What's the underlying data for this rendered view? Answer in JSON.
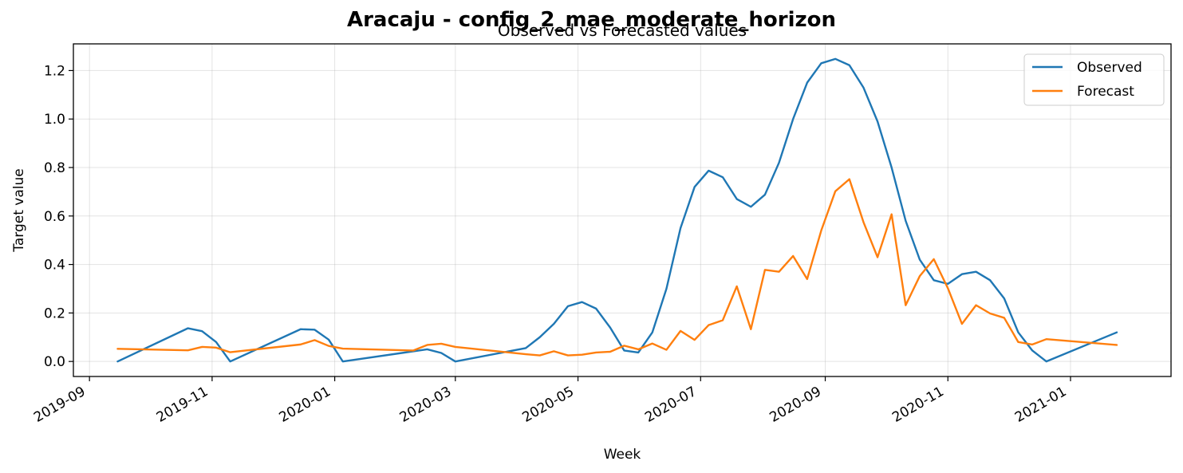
{
  "figure": {
    "suptitle": "Aracaju - config_2_mae_moderate_horizon"
  },
  "chart_data": {
    "type": "line",
    "title": "Observed vs Forecasted values",
    "xlabel": "Week",
    "ylabel": "Target value",
    "x_tick_labels": [
      "2019-09",
      "2019-11",
      "2020-01",
      "2020-03",
      "2020-05",
      "2020-07",
      "2020-09",
      "2020-11",
      "2021-01"
    ],
    "y_tick_labels": [
      "0.0",
      "0.2",
      "0.4",
      "0.6",
      "0.8",
      "1.0",
      "1.2"
    ],
    "xlim": [
      "2019-08-24",
      "2021-02-20"
    ],
    "ylim": [
      -0.062,
      1.31
    ],
    "grid": true,
    "legend_position": "top-right",
    "series": [
      {
        "name": "Observed",
        "color": "#1f77b4",
        "x": [
          "2019-09-15",
          "2019-10-20",
          "2019-10-27",
          "2019-11-03",
          "2019-11-10",
          "2019-12-15",
          "2019-12-22",
          "2019-12-29",
          "2020-01-05",
          "2020-02-16",
          "2020-02-23",
          "2020-03-01",
          "2020-04-05",
          "2020-04-12",
          "2020-04-19",
          "2020-04-26",
          "2020-05-03",
          "2020-05-10",
          "2020-05-17",
          "2020-05-24",
          "2020-05-31",
          "2020-06-07",
          "2020-06-14",
          "2020-06-21",
          "2020-06-28",
          "2020-07-05",
          "2020-07-12",
          "2020-07-19",
          "2020-07-26",
          "2020-08-02",
          "2020-08-09",
          "2020-08-16",
          "2020-08-23",
          "2020-08-30",
          "2020-09-06",
          "2020-09-13",
          "2020-09-20",
          "2020-09-27",
          "2020-10-04",
          "2020-10-11",
          "2020-10-18",
          "2020-10-25",
          "2020-11-01",
          "2020-11-08",
          "2020-11-15",
          "2020-11-22",
          "2020-11-29",
          "2020-12-06",
          "2020-12-13",
          "2020-12-20",
          "2021-01-24"
        ],
        "values": [
          0.0,
          0.137,
          0.125,
          0.08,
          0.0,
          0.133,
          0.131,
          0.09,
          0.0,
          0.05,
          0.035,
          0.0,
          0.055,
          0.1,
          0.155,
          0.228,
          0.245,
          0.218,
          0.14,
          0.045,
          0.037,
          0.12,
          0.3,
          0.55,
          0.72,
          0.787,
          0.76,
          0.67,
          0.638,
          0.688,
          0.82,
          1.0,
          1.15,
          1.23,
          1.248,
          1.222,
          1.13,
          0.99,
          0.8,
          0.58,
          0.42,
          0.335,
          0.32,
          0.36,
          0.37,
          0.335,
          0.26,
          0.12,
          0.045,
          0.0,
          0.12
        ]
      },
      {
        "name": "Forecast",
        "color": "#ff7f0e",
        "x": [
          "2019-09-15",
          "2019-10-20",
          "2019-10-27",
          "2019-11-03",
          "2019-11-10",
          "2019-12-15",
          "2019-12-22",
          "2019-12-29",
          "2020-01-05",
          "2020-02-09",
          "2020-02-16",
          "2020-02-23",
          "2020-03-01",
          "2020-04-05",
          "2020-04-12",
          "2020-04-19",
          "2020-04-26",
          "2020-05-03",
          "2020-05-10",
          "2020-05-17",
          "2020-05-24",
          "2020-05-31",
          "2020-06-07",
          "2020-06-14",
          "2020-06-21",
          "2020-06-28",
          "2020-07-05",
          "2020-07-12",
          "2020-07-19",
          "2020-07-26",
          "2020-08-02",
          "2020-08-09",
          "2020-08-16",
          "2020-08-23",
          "2020-08-30",
          "2020-09-06",
          "2020-09-13",
          "2020-09-20",
          "2020-09-27",
          "2020-10-04",
          "2020-10-11",
          "2020-10-18",
          "2020-10-25",
          "2020-11-01",
          "2020-11-08",
          "2020-11-15",
          "2020-11-22",
          "2020-11-29",
          "2020-12-06",
          "2020-12-13",
          "2020-12-20",
          "2021-01-24"
        ],
        "values": [
          0.052,
          0.046,
          0.06,
          0.057,
          0.038,
          0.07,
          0.088,
          0.064,
          0.053,
          0.045,
          0.068,
          0.073,
          0.06,
          0.03,
          0.025,
          0.042,
          0.025,
          0.028,
          0.037,
          0.04,
          0.065,
          0.05,
          0.074,
          0.048,
          0.126,
          0.089,
          0.15,
          0.17,
          0.31,
          0.133,
          0.378,
          0.37,
          0.435,
          0.34,
          0.54,
          0.702,
          0.752,
          0.575,
          0.43,
          0.607,
          0.232,
          0.352,
          0.422,
          0.302,
          0.155,
          0.232,
          0.198,
          0.18,
          0.08,
          0.07,
          0.092,
          0.068
        ]
      }
    ]
  }
}
